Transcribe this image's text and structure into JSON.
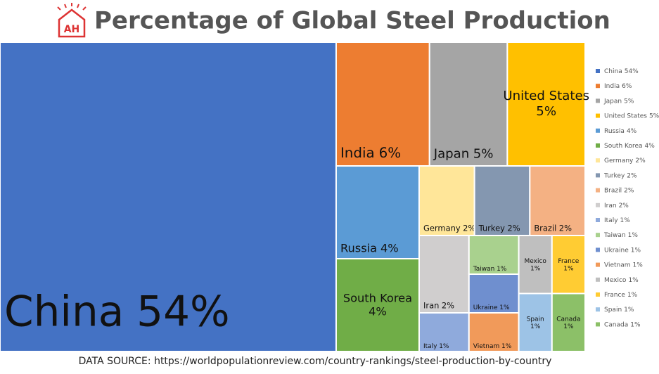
{
  "chart_data": {
    "type": "treemap",
    "title": "Percentage of Global Steel Production",
    "source": "DATA SOURCE: https://worldpopulationreview.com/country-rankings/steel-production-by-country",
    "categories": [
      "China",
      "India",
      "Japan",
      "United States",
      "Russia",
      "South Korea",
      "Germany",
      "Turkey",
      "Brazil",
      "Iran",
      "Italy",
      "Taiwan",
      "Ukraine",
      "Vietnam",
      "Mexico",
      "France",
      "Spain",
      "Canada"
    ],
    "values": [
      54,
      6,
      5,
      5,
      4,
      4,
      2,
      2,
      2,
      2,
      1,
      1,
      1,
      1,
      1,
      1,
      1,
      1
    ],
    "value_labels": [
      "54%",
      "6%",
      "5%",
      "5%",
      "4%",
      "4%",
      "2%",
      "2%",
      "2%",
      "2%",
      "1%",
      "1%",
      "1%",
      "1%",
      "1%",
      "1%",
      "1%",
      "1%"
    ],
    "colors": [
      "#4472c4",
      "#ed7d31",
      "#a5a5a5",
      "#ffc000",
      "#5b9bd5",
      "#70ad47",
      "#ffe699",
      "#8497b0",
      "#f4b183",
      "#d0cece",
      "#8faadc",
      "#a9d18e",
      "#6f8fcf",
      "#f19a5a",
      "#bfbfbf",
      "#ffcc33",
      "#9dc3e6",
      "#8cc068"
    ]
  }
}
